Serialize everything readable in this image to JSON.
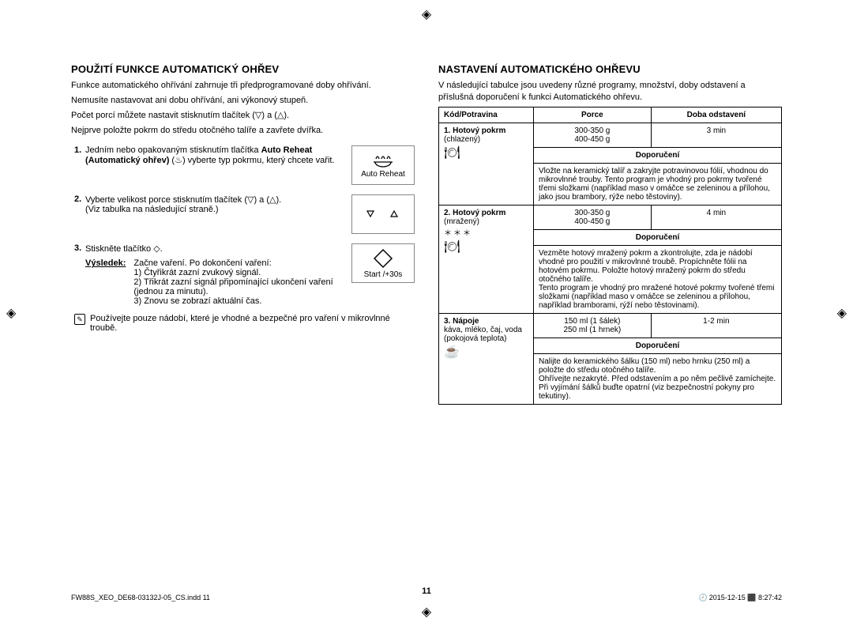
{
  "left": {
    "heading": "POUŽITÍ FUNKCE AUTOMATICKÝ OHŘEV",
    "intro1": "Funkce automatického ohřívání zahrnuje tři předprogramované doby ohřívání.",
    "intro2": "Nemusíte nastavovat ani dobu ohřívání, ani výkonový stupeň.",
    "intro3": "Počet porcí můžete nastavit stisknutím tlačítek (▽) a (△).",
    "intro4": "Nejprve položte pokrm do středu otočného talíře a zavřete dvířka.",
    "step1_a": "Jedním nebo opakovaným stisknutím tlačítka",
    "step1_b": "Auto Reheat (Automatický ohřev)",
    "step1_c": "(♨) vyberte typ pokrmu, který chcete vařit.",
    "icon1_label": "Auto Reheat",
    "step2_a": "Vyberte velikost porce stisknutím tlačítek (▽) a (△).",
    "step2_b": "(Viz tabulka na následující straně.)",
    "step3": "Stiskněte tlačítko ◇.",
    "icon3_label": "Start /+30s",
    "result_label": "Výsledek:",
    "result_text": "Začne vaření. Po dokončení vaření:",
    "r1": "Čtyřikrát zazní zvukový signál.",
    "r2": "Třikrát zazní signál připomínající ukončení vaření (jednou za minutu).",
    "r3": "Znovu se zobrazí aktuální čas.",
    "note": "Používejte pouze nádobí, které je vhodné a bezpečné pro vaření v mikrovlnné troubě."
  },
  "right": {
    "heading": "NASTAVENÍ AUTOMATICKÉHO OHŘEVU",
    "intro": "V následující tabulce jsou uvedeny různé programy, množství, doby odstavení a příslušná doporučení k funkci Automatického ohřevu.",
    "th_code": "Kód/Potravina",
    "th_portion": "Porce",
    "th_time": "Doba odstavení",
    "th_rec": "Doporučení",
    "rows": [
      {
        "code_title": "1. Hotový pokrm",
        "code_sub": "(chlazený)",
        "icon": "🍽",
        "portion": "300-350 g\n400-450 g",
        "time": "3 min",
        "rec": "Vložte na keramický talíř a zakryjte potravinovou fólií, vhodnou do mikrovlnné trouby. Tento program je vhodný pro pokrmy tvořené třemi složkami (například maso v omáčce se zeleninou a přílohou, jako jsou brambory, rýže nebo těstoviny)."
      },
      {
        "code_title": "2. Hotový pokrm",
        "code_sub": "(mražený)",
        "stars": "＊＊＊",
        "icon": "🍽",
        "portion": "300-350 g\n400-450 g",
        "time": "4 min",
        "rec": "Vezměte hotový mražený pokrm a zkontrolujte, zda je nádobí vhodné pro použití v mikrovlnné troubě. Propíchněte fólii na hotovém pokrmu. Položte hotový mražený pokrm do středu otočného talíře.\nTento program je vhodný pro mražené hotové pokrmy tvořené třemi složkami (například maso v omáčce se zeleninou a přílohou, například bramborami, rýží nebo těstovinami)."
      },
      {
        "code_title": "3. Nápoje",
        "code_sub": "káva, mléko, čaj, voda (pokojová teplota)",
        "icon": "☕",
        "portion": "150 ml (1 šálek)\n250 ml (1 hrnek)",
        "time": "1-2 min",
        "rec": "Nalijte do keramického šálku (150 ml) nebo hrnku (250 ml) a položte do středu otočného talíře.\nOhřívejte nezakryté. Před odstavením a po něm pečlivě zamíchejte. Při vyjímání šálků buďte opatrní (viz bezpečnostní pokyny pro tekutiny)."
      }
    ]
  },
  "pagenum": "11",
  "footer_left": "FW88S_XEO_DE68-03132J-05_CS.indd   11",
  "footer_right": "2015-12-15   ⬛ 8:27:42"
}
